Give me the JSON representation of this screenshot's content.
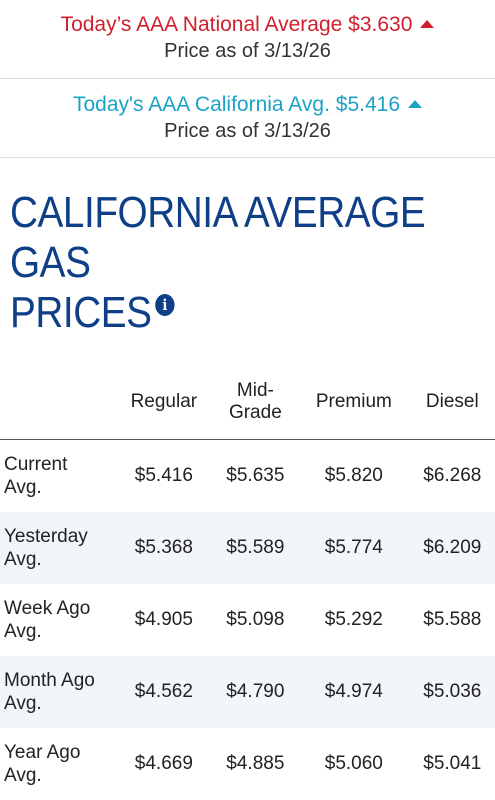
{
  "national": {
    "label": "Today’s AAA National Average $3.630",
    "date": "Price as of 3/13/26",
    "trend_icon": "up-arrow-icon",
    "color": "#d0202e"
  },
  "california": {
    "label": "Today's AAA California Avg. $5.416",
    "date": "Price as of 3/13/26",
    "trend_icon": "up-arrow-icon",
    "color": "#1aa3c6"
  },
  "heading": {
    "line1": "CALIFORNIA AVERAGE GAS",
    "line2": "PRICES",
    "info_icon": "info-icon",
    "color": "#0e3f87"
  },
  "table": {
    "columns": [
      "Regular",
      "Mid-\nGrade",
      "Premium",
      "Diesel"
    ],
    "rows": [
      {
        "label1": "Current",
        "label2": "Avg.",
        "values": [
          "$5.416",
          "$5.635",
          "$5.820",
          "$6.268"
        ]
      },
      {
        "label1": "Yesterday",
        "label2": "Avg.",
        "values": [
          "$5.368",
          "$5.589",
          "$5.774",
          "$6.209"
        ]
      },
      {
        "label1": "Week Ago",
        "label2": "Avg.",
        "values": [
          "$4.905",
          "$5.098",
          "$5.292",
          "$5.588"
        ]
      },
      {
        "label1": "Month Ago",
        "label2": "Avg.",
        "values": [
          "$4.562",
          "$4.790",
          "$4.974",
          "$5.036"
        ]
      },
      {
        "label1": "Year Ago",
        "label2": "Avg.",
        "values": [
          "$4.669",
          "$4.885",
          "$5.060",
          "$5.041"
        ]
      }
    ]
  }
}
